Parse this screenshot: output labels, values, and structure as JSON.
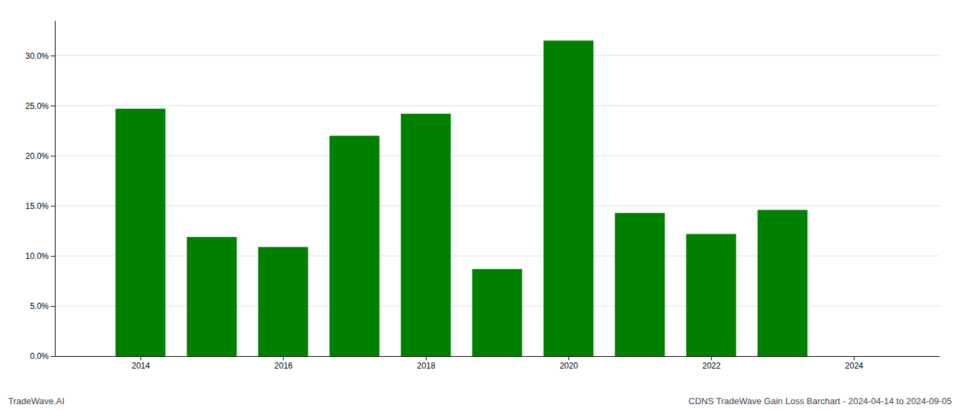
{
  "chart_data": {
    "type": "bar",
    "x": [
      2014,
      2015,
      2016,
      2017,
      2018,
      2019,
      2020,
      2021,
      2022,
      2023
    ],
    "values": [
      0.247,
      0.119,
      0.109,
      0.22,
      0.242,
      0.087,
      0.315,
      0.143,
      0.122,
      0.146
    ],
    "color": "#008000",
    "xlim": [
      2012.8,
      2025.2
    ],
    "xticks": [
      2014,
      2016,
      2018,
      2020,
      2022,
      2024
    ],
    "ylim": [
      0,
      0.335
    ],
    "yticks": [
      {
        "value": 0.0,
        "label": "0.0%"
      },
      {
        "value": 0.05,
        "label": "5.0%"
      },
      {
        "value": 0.1,
        "label": "10.0%"
      },
      {
        "value": 0.15,
        "label": "15.0%"
      },
      {
        "value": 0.2,
        "label": "20.0%"
      },
      {
        "value": 0.25,
        "label": "25.0%"
      },
      {
        "value": 0.3,
        "label": "30.0%"
      }
    ],
    "grid": true,
    "annotations": [
      "TradeWave.AI",
      "CDNS TradeWave Gain Loss Barchart - 2024-04-14 to 2024-09-05"
    ]
  }
}
